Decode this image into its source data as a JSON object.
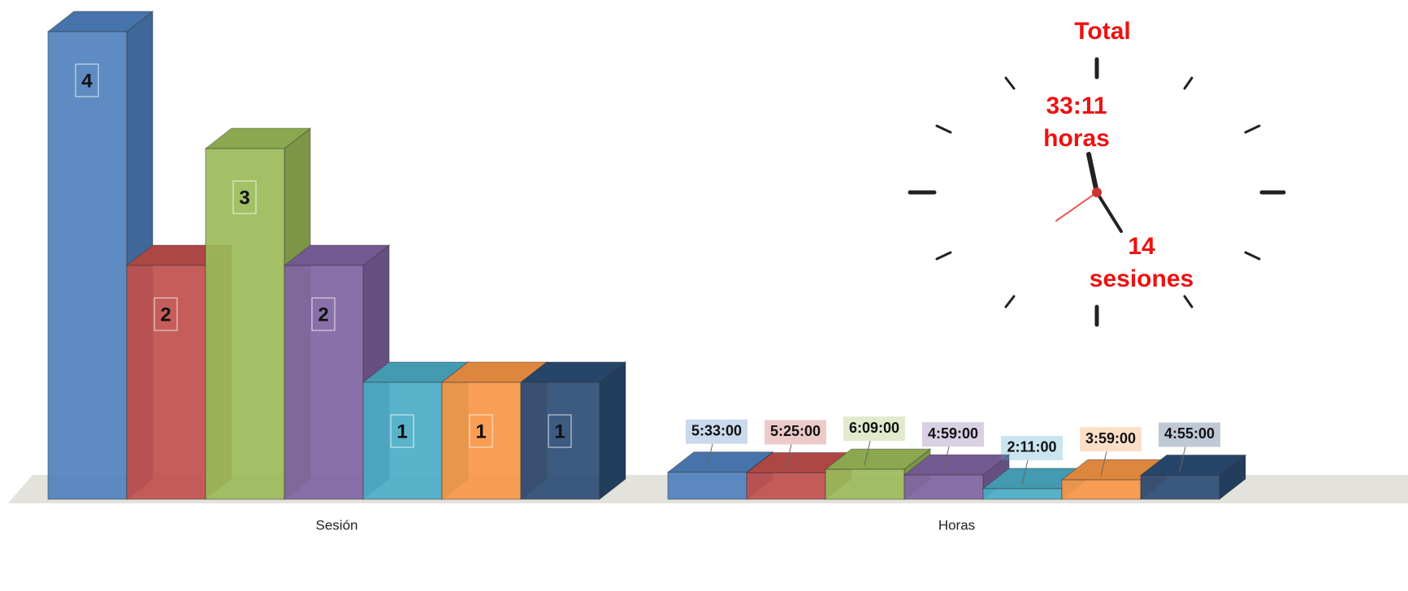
{
  "chart_data": [
    {
      "type": "bar3d",
      "x_label": "Sesión",
      "values": [
        4,
        2,
        3,
        2,
        1,
        1,
        1
      ],
      "colors": [
        "#4f81bd",
        "#c0504d",
        "#9bbb59",
        "#8064a2",
        "#4bacc6",
        "#f79646",
        "#2c4d75"
      ]
    },
    {
      "type": "bar3d",
      "x_label": "Horas",
      "values": [
        5.55,
        5.4167,
        6.15,
        4.9833,
        2.1833,
        3.9833,
        4.9167
      ],
      "value_labels": [
        "5:33:00",
        "5:25:00",
        "6:09:00",
        "4:59:00",
        "2:11:00",
        "3:59:00",
        "4:55:00"
      ],
      "colors": [
        "#4f81bd",
        "#c0504d",
        "#9bbb59",
        "#8064a2",
        "#4bacc6",
        "#f79646",
        "#2c4d75"
      ]
    }
  ],
  "clock": {
    "title": "Total",
    "hours": "33:11",
    "hours_unit": "horas",
    "sessions": "14",
    "sessions_unit": "sesiones"
  }
}
